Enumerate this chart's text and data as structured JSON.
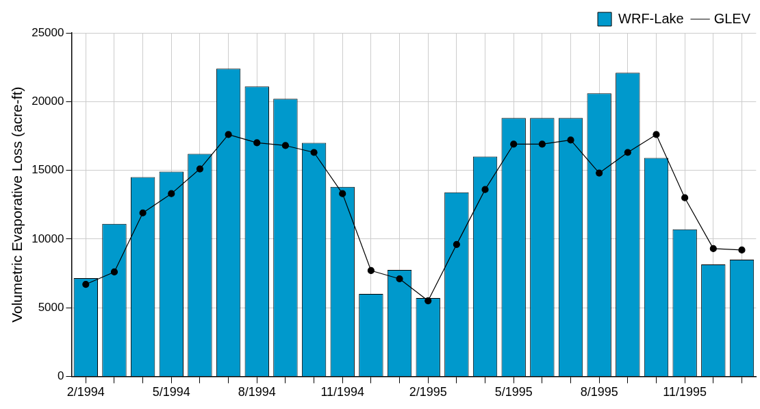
{
  "chart_data": {
    "type": "bar",
    "ylabel": "Volumetric Evaporative Loss (acre-ft)",
    "categories": [
      "2/1994",
      null,
      null,
      "5/1994",
      null,
      null,
      "8/1994",
      null,
      null,
      "11/1994",
      null,
      null,
      "2/1995",
      null,
      null,
      "5/1995",
      null,
      null,
      "8/1995",
      null,
      null,
      "11/1995",
      null,
      null
    ],
    "series": [
      {
        "name": "WRF-Lake",
        "color": "#0099cc",
        "values": [
          7150,
          11100,
          14500,
          14900,
          16200,
          22400,
          21100,
          20200,
          17000,
          13800,
          6000,
          7750,
          5700,
          13400,
          16000,
          18800,
          18800,
          18800,
          20600,
          22100,
          15900,
          10700,
          8150,
          8500
        ]
      },
      {
        "name": "GLEV",
        "type": "line",
        "color": "#000000",
        "marker": "circle",
        "values": [
          6700,
          7600,
          11900,
          13300,
          15100,
          17600,
          17000,
          16800,
          16300,
          13300,
          7700,
          7100,
          5500,
          9600,
          13600,
          16900,
          16900,
          17200,
          14800,
          16300,
          17600,
          13000,
          9300,
          9200
        ]
      }
    ],
    "ylim": [
      0,
      25000
    ],
    "yticks": [
      0,
      5000,
      10000,
      15000,
      20000,
      25000
    ],
    "grid": true,
    "legend": "top right"
  }
}
